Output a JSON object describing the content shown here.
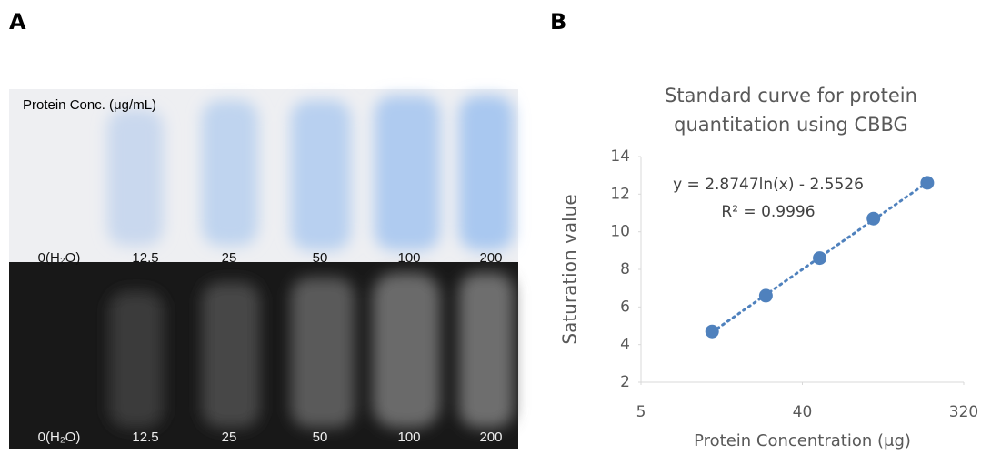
{
  "panel_a": {
    "label": "A",
    "heading": "Protein Conc. (μg/mL)",
    "top_lanes": [
      "0(H₂O)",
      "12.5",
      "25",
      "50",
      "100",
      "200"
    ],
    "bottom_lanes": [
      "0(H₂O)",
      "12.5",
      "25",
      "50",
      "100",
      "200"
    ]
  },
  "chart_data": {
    "type": "scatter",
    "label": "B",
    "title": [
      "Standard curve for protein",
      "quantitation using CBBG"
    ],
    "x_label": "Protein Concentration (μg)",
    "y_label": "Saturation value",
    "x": [
      12.5,
      25,
      50,
      100,
      200
    ],
    "values": [
      4.7,
      6.6,
      8.6,
      10.7,
      12.6
    ],
    "color": "#4f81bd",
    "xscale": "log",
    "xlim": [
      5,
      320
    ],
    "xticks": [
      5,
      40,
      320
    ],
    "ylim": [
      2,
      14
    ],
    "yticks": [
      2,
      4,
      6,
      8,
      10,
      12,
      14
    ],
    "grid": false,
    "annotations": [
      "y = 2.8747ln(x) - 2.5526",
      "R² = 0.9996"
    ]
  }
}
